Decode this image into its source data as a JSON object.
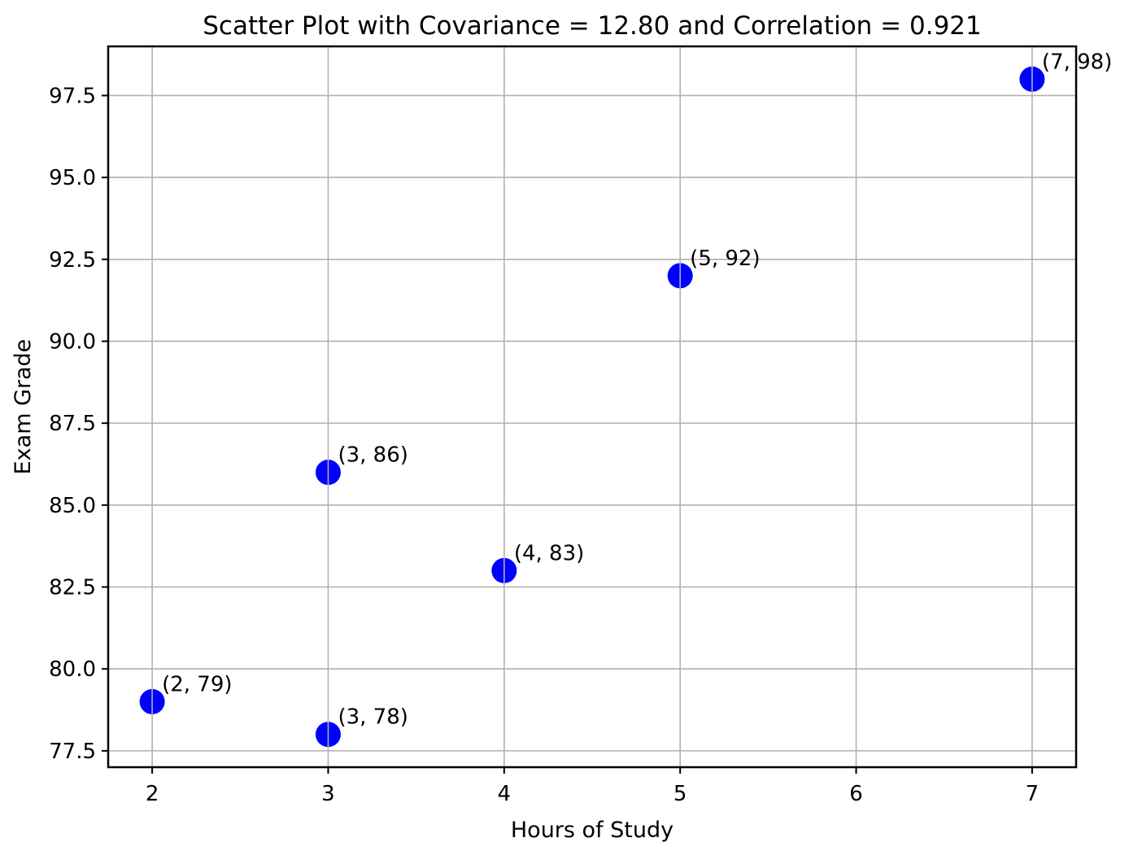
{
  "chart_data": {
    "type": "scatter",
    "title": "Scatter Plot with Covariance = 12.80 and Correlation = 0.921",
    "covariance": 12.8,
    "correlation": 0.921,
    "xlabel": "Hours of Study",
    "ylabel": "Exam Grade",
    "xlim": [
      1.75,
      7.25
    ],
    "ylim": [
      77.0,
      99.0
    ],
    "grid": true,
    "grid_color": "#b0b0b0",
    "spine_color": "#000000",
    "background_color": "#ffffff",
    "marker": {
      "color": "#0000ff",
      "radius_px": 15.5
    },
    "xticks": [
      {
        "value": 2,
        "label": "2"
      },
      {
        "value": 3,
        "label": "3"
      },
      {
        "value": 4,
        "label": "4"
      },
      {
        "value": 5,
        "label": "5"
      },
      {
        "value": 6,
        "label": "6"
      },
      {
        "value": 7,
        "label": "7"
      }
    ],
    "yticks": [
      {
        "value": 77.5,
        "label": "77.5"
      },
      {
        "value": 80.0,
        "label": "80.0"
      },
      {
        "value": 82.5,
        "label": "82.5"
      },
      {
        "value": 85.0,
        "label": "85.0"
      },
      {
        "value": 87.5,
        "label": "87.5"
      },
      {
        "value": 90.0,
        "label": "90.0"
      },
      {
        "value": 92.5,
        "label": "92.5"
      },
      {
        "value": 95.0,
        "label": "95.0"
      },
      {
        "value": 97.5,
        "label": "97.5"
      }
    ],
    "points": [
      {
        "x": 2,
        "y": 79,
        "label": "(2, 79)"
      },
      {
        "x": 3,
        "y": 78,
        "label": "(3, 78)"
      },
      {
        "x": 3,
        "y": 86,
        "label": "(3, 86)"
      },
      {
        "x": 4,
        "y": 83,
        "label": "(4, 83)"
      },
      {
        "x": 5,
        "y": 92,
        "label": "(5, 92)"
      },
      {
        "x": 7,
        "y": 98,
        "label": "(7, 98)"
      }
    ]
  }
}
